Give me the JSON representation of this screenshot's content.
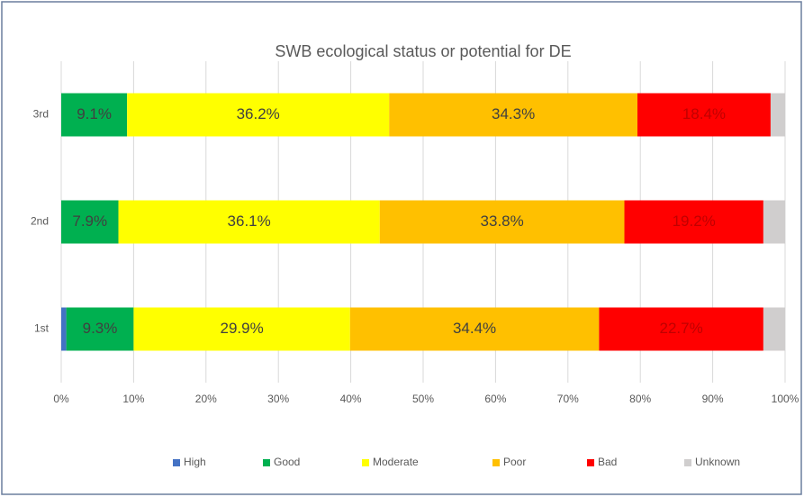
{
  "chart_data": {
    "type": "stacked_barh",
    "title": "SWB ecological status or potential for DE",
    "categories": [
      "1st",
      "2nd",
      "3rd"
    ],
    "series": [
      {
        "name": "High",
        "color": "#4472c4",
        "values": [
          0.7,
          0,
          0
        ],
        "value_labels": [
          null,
          null,
          null
        ]
      },
      {
        "name": "Good",
        "color": "#00b050",
        "values": [
          9.3,
          7.9,
          9.1
        ],
        "value_labels": [
          "9.3%",
          "7.9%",
          "9.1%"
        ]
      },
      {
        "name": "Moderate",
        "color": "#ffff00",
        "values": [
          29.9,
          36.1,
          36.2
        ],
        "value_labels": [
          "29.9%",
          "36.1%",
          "36.2%"
        ]
      },
      {
        "name": "Poor",
        "color": "#ffc000",
        "values": [
          34.4,
          33.8,
          34.3
        ],
        "value_labels": [
          "34.4%",
          "33.8%",
          "34.3%"
        ]
      },
      {
        "name": "Bad",
        "color": "#ff0000",
        "values": [
          22.7,
          19.2,
          18.4
        ],
        "value_labels": [
          "22.7%",
          "19.2%",
          "18.4%"
        ]
      },
      {
        "name": "Unknown",
        "color": "#d0cece",
        "values": [
          3.0,
          3.0,
          2.0
        ],
        "value_labels": [
          null,
          null,
          null
        ]
      }
    ],
    "xlim": [
      0,
      100
    ],
    "xticks": [
      {
        "value": 0,
        "label": "0%"
      },
      {
        "value": 10,
        "label": "10%"
      },
      {
        "value": 20,
        "label": "20%"
      },
      {
        "value": 30,
        "label": "30%"
      },
      {
        "value": 40,
        "label": "40%"
      },
      {
        "value": 50,
        "label": "50%"
      },
      {
        "value": 60,
        "label": "60%"
      },
      {
        "value": 70,
        "label": "70%"
      },
      {
        "value": 80,
        "label": "80%"
      },
      {
        "value": 90,
        "label": "90%"
      },
      {
        "value": 100,
        "label": "100%"
      }
    ],
    "grid": true,
    "legend": "bottom"
  }
}
